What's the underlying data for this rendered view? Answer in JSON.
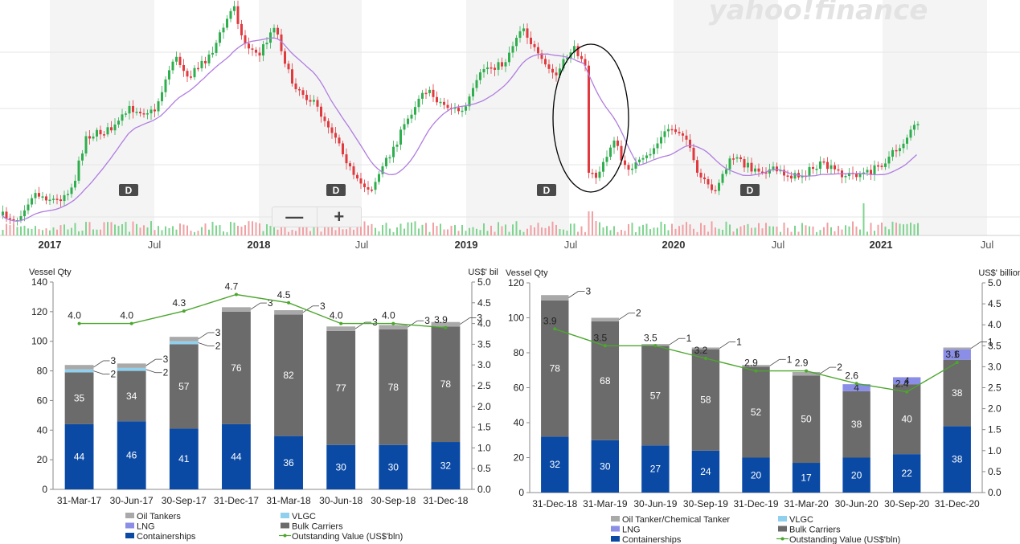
{
  "stock": {
    "watermark": "yahoo!finance",
    "x_labels": [
      "2017",
      "Jul",
      "2018",
      "Jul",
      "2019",
      "Jul",
      "2020",
      "Jul",
      "2021",
      "Jul"
    ],
    "marker_label": "D",
    "zoom_out_label": "—",
    "zoom_in_label": "+",
    "colors": {
      "up": "#2fae4e",
      "down": "#e0393e",
      "ma": "#b07de0",
      "volume_up": "#7fd48f",
      "volume_down": "#f2a0a3"
    }
  },
  "chart_data": [
    {
      "type": "bar",
      "stacked": true,
      "left_axis_label": "Vessel Qty",
      "right_axis_label": "US$' billion",
      "ylim": [
        0,
        140
      ],
      "y_ticks": [
        "0",
        "20",
        "40",
        "60",
        "80",
        "100",
        "120",
        "140"
      ],
      "y2lim": [
        0,
        5
      ],
      "y2_ticks": [
        "0.0",
        "0.5",
        "1.0",
        "1.5",
        "2.0",
        "2.5",
        "3.0",
        "3.5",
        "4.0",
        "4.5",
        "5.0"
      ],
      "categories": [
        "31-Mar-17",
        "30-Jun-17",
        "30-Sep-17",
        "31-Dec-17",
        "31-Mar-18",
        "30-Jun-18",
        "30-Sep-18",
        "31-Dec-18"
      ],
      "series": [
        {
          "name": "Containerships",
          "color": "#0a4aa5",
          "values": [
            44,
            46,
            41,
            44,
            36,
            30,
            30,
            32
          ],
          "labels": [
            "44",
            "46",
            "41",
            "44",
            "36",
            "30",
            "30",
            "32"
          ]
        },
        {
          "name": "Bulk Carriers",
          "color": "#6b6b6b",
          "values": [
            35,
            34,
            57,
            76,
            82,
            77,
            78,
            78
          ],
          "labels": [
            "35",
            "34",
            "57",
            "76",
            "82",
            "77",
            "78",
            "78"
          ]
        },
        {
          "name": "LNG",
          "color": "#8a8ee6",
          "values": [
            0,
            0,
            0,
            0,
            0,
            0,
            0,
            0
          ],
          "labels": [
            "",
            "",
            "",
            "",
            "",
            "",
            "",
            ""
          ]
        },
        {
          "name": "VLGC",
          "color": "#8fd0ee",
          "values": [
            2,
            2,
            2,
            0,
            0,
            0,
            0,
            0
          ],
          "labels": [
            "2",
            "2",
            "2",
            "",
            "",
            "",
            "",
            ""
          ]
        },
        {
          "name": "Oil Tankers",
          "color": "#a9a9a9",
          "values": [
            3,
            3,
            3,
            3,
            3,
            3,
            3,
            3
          ],
          "labels": [
            "3",
            "3",
            "3",
            "3",
            "3",
            "3",
            "3",
            "3"
          ]
        }
      ],
      "line": {
        "name": "Outstanding Value (US$'bln)",
        "color": "#4ca62e",
        "values": [
          4.0,
          4.0,
          4.3,
          4.7,
          4.5,
          4.0,
          4.0,
          3.9
        ],
        "labels": [
          "4.0",
          "4.0",
          "4.3",
          "4.7",
          "4.5",
          "4.0",
          "4.0",
          "3.9"
        ]
      },
      "legend": [
        "Oil Tankers",
        "VLGC",
        "LNG",
        "Bulk Carriers",
        "Containerships",
        "Outstanding Value (US$'bln)"
      ]
    },
    {
      "type": "bar",
      "stacked": true,
      "left_axis_label": "Vessel Qty",
      "right_axis_label": "US$' billion",
      "ylim": [
        0,
        120
      ],
      "y_ticks": [
        "0",
        "20",
        "40",
        "60",
        "80",
        "100",
        "120"
      ],
      "y2lim": [
        0,
        5
      ],
      "y2_ticks": [
        "0.0",
        "0.5",
        "1.0",
        "1.5",
        "2.0",
        "2.5",
        "3.0",
        "3.5",
        "4.0",
        "4.5",
        "5.0"
      ],
      "categories": [
        "31-Dec-18",
        "31-Mar-19",
        "30-Jun-19",
        "30-Sep-19",
        "31-Dec-19",
        "31-Mar-20",
        "30-Jun-20",
        "30-Sep-20",
        "31-Dec-20"
      ],
      "series": [
        {
          "name": "Containerships",
          "color": "#0a4aa5",
          "values": [
            32,
            30,
            27,
            24,
            20,
            17,
            20,
            22,
            38
          ],
          "labels": [
            "32",
            "30",
            "27",
            "24",
            "20",
            "17",
            "20",
            "22",
            "38"
          ]
        },
        {
          "name": "Bulk Carriers",
          "color": "#6b6b6b",
          "values": [
            78,
            68,
            57,
            58,
            52,
            50,
            38,
            40,
            38
          ],
          "labels": [
            "78",
            "68",
            "57",
            "58",
            "52",
            "50",
            "38",
            "40",
            "38"
          ]
        },
        {
          "name": "LNG",
          "color": "#8a8ee6",
          "values": [
            0,
            0,
            0,
            0,
            0,
            0,
            4,
            4,
            6
          ],
          "labels": [
            "",
            "",
            "",
            "",
            "",
            "",
            "4",
            "4",
            "6"
          ]
        },
        {
          "name": "VLGC",
          "color": "#8fd0ee",
          "values": [
            0,
            0,
            0,
            0,
            0,
            0,
            0,
            0,
            0
          ],
          "labels": [
            "",
            "",
            "",
            "",
            "",
            "",
            "",
            "",
            ""
          ]
        },
        {
          "name": "Oil Tanker/Chemical Tanker",
          "color": "#a9a9a9",
          "values": [
            3,
            2,
            1,
            1,
            1,
            2,
            0,
            0,
            1
          ],
          "labels": [
            "3",
            "2",
            "1",
            "1",
            "1",
            "2",
            "",
            "",
            "1"
          ]
        }
      ],
      "line": {
        "name": "Outstanding Value (US$'bln)",
        "color": "#4ca62e",
        "values": [
          3.9,
          3.5,
          3.5,
          3.2,
          2.9,
          2.9,
          2.6,
          2.4,
          3.1
        ],
        "labels": [
          "3.9",
          "3.5",
          "3.5",
          "3.2",
          "2.9",
          "2.9",
          "2.6",
          "2.4",
          "3.1"
        ]
      },
      "legend": [
        "Oil Tanker/Chemical Tanker",
        "VLGC",
        "LNG",
        "Bulk Carriers",
        "Containerships",
        "Outstanding Value (US$'bln)"
      ]
    }
  ]
}
